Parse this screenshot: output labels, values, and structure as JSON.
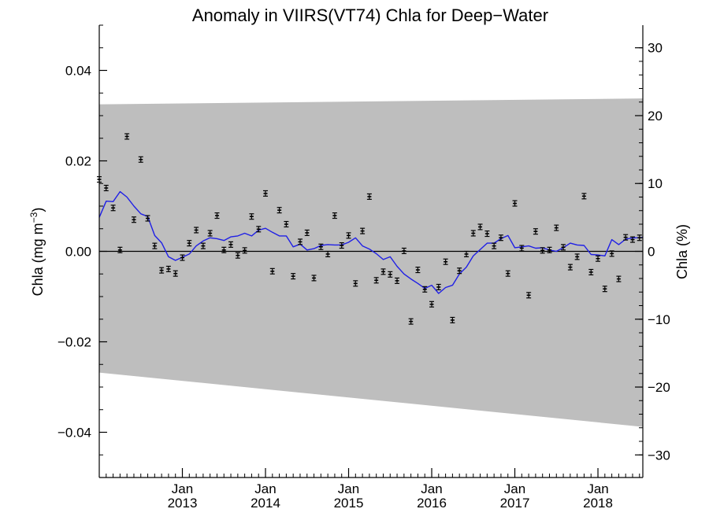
{
  "chart_data": {
    "type": "scatter",
    "title": "Anomaly in VIIRS(VT74) Chla for Deep−Water",
    "ylabel_left_main": "Chla (mg m",
    "ylabel_left_exp": "−3",
    "ylabel_left_close": ")",
    "ylabel_right": "Chla (%)",
    "xlim": [
      2012.0,
      2018.54
    ],
    "ylim_left": [
      -0.05,
      0.05
    ],
    "ylim_right": [
      -33.33,
      33.33
    ],
    "grid": false,
    "yticks_left": [
      {
        "value": 0.04,
        "label": "0.04"
      },
      {
        "value": 0.02,
        "label": "0.02"
      },
      {
        "value": 0.0,
        "label": "0.00"
      },
      {
        "value": -0.02,
        "label": "−0.02"
      },
      {
        "value": -0.04,
        "label": "−0.04"
      }
    ],
    "yticks_right": [
      {
        "value": 30,
        "label": "30"
      },
      {
        "value": 20,
        "label": "20"
      },
      {
        "value": 10,
        "label": "10"
      },
      {
        "value": 0,
        "label": "0"
      },
      {
        "value": -10,
        "label": "−10"
      },
      {
        "value": -20,
        "label": "−20"
      },
      {
        "value": -30,
        "label": "−30"
      }
    ],
    "xticks": [
      {
        "value": 2013.0,
        "month": "Jan",
        "year": "2013"
      },
      {
        "value": 2014.0,
        "month": "Jan",
        "year": "2014"
      },
      {
        "value": 2015.0,
        "month": "Jan",
        "year": "2015"
      },
      {
        "value": 2016.0,
        "month": "Jan",
        "year": "2016"
      },
      {
        "value": 2017.0,
        "month": "Jan",
        "year": "2017"
      },
      {
        "value": 2018.0,
        "month": "Jan",
        "year": "2018"
      }
    ],
    "band": {
      "upper_start": 0.0325,
      "upper_end": 0.0338,
      "lower_start": -0.0268,
      "lower_end": -0.0388
    },
    "monthly_anomaly_points": {
      "t": [
        2012.0,
        2012.083,
        2012.167,
        2012.25,
        2012.333,
        2012.417,
        2012.5,
        2012.583,
        2012.667,
        2012.75,
        2012.833,
        2012.917,
        2013.0,
        2013.083,
        2013.167,
        2013.25,
        2013.333,
        2013.417,
        2013.5,
        2013.583,
        2013.667,
        2013.75,
        2013.833,
        2013.917,
        2014.0,
        2014.083,
        2014.167,
        2014.25,
        2014.333,
        2014.417,
        2014.5,
        2014.583,
        2014.667,
        2014.75,
        2014.833,
        2014.917,
        2015.0,
        2015.083,
        2015.167,
        2015.25,
        2015.333,
        2015.417,
        2015.5,
        2015.583,
        2015.667,
        2015.75,
        2015.833,
        2015.917,
        2016.0,
        2016.083,
        2016.167,
        2016.25,
        2016.333,
        2016.417,
        2016.5,
        2016.583,
        2016.667,
        2016.75,
        2016.833,
        2016.917,
        2017.0,
        2017.083,
        2017.167,
        2017.25,
        2017.333,
        2017.417,
        2017.5,
        2017.583,
        2017.667,
        2017.75,
        2017.833,
        2017.917,
        2018.0,
        2018.083,
        2018.167,
        2018.25,
        2018.333,
        2018.417,
        2018.5
      ],
      "value": [
        0.0159,
        0.014,
        0.0096,
        0.0003,
        0.0254,
        0.007,
        0.0203,
        0.0073,
        0.0012,
        -0.0042,
        -0.0039,
        -0.0049,
        -0.0014,
        0.0018,
        0.0047,
        0.0012,
        0.004,
        0.0079,
        0.0003,
        0.0015,
        -0.0009,
        0.0002,
        0.0077,
        0.0049,
        0.0128,
        -0.0044,
        0.0091,
        0.006,
        -0.0055,
        0.0021,
        0.0041,
        -0.0059,
        0.001,
        -0.0006,
        0.0079,
        0.0013,
        0.0035,
        -0.0071,
        0.0045,
        0.0121,
        -0.0064,
        -0.0045,
        -0.0051,
        -0.0065,
        0.0001,
        -0.0155,
        -0.0041,
        -0.0084,
        -0.0117,
        -0.0079,
        -0.0023,
        -0.0152,
        -0.0043,
        -0.0006,
        0.004,
        0.0054,
        0.0039,
        0.0012,
        0.003,
        -0.0049,
        0.0106,
        0.0007,
        -0.0097,
        0.0044,
        0.0002,
        0.0003,
        0.0052,
        0.0009,
        -0.0035,
        -0.0012,
        0.0122,
        -0.0046,
        -0.0016,
        -0.0083,
        -0.0005,
        -0.0061,
        0.0031,
        0.0026,
        0.003
      ],
      "error": [
        0.0006,
        0.0006,
        0.0006,
        0.0006,
        0.0006,
        0.0006,
        0.0006,
        0.0006,
        0.0006,
        0.0006,
        0.0006,
        0.0006,
        0.0006,
        0.0006,
        0.0006,
        0.0006,
        0.0006,
        0.0006,
        0.0006,
        0.0006,
        0.0006,
        0.0006,
        0.0006,
        0.0006,
        0.0006,
        0.0006,
        0.0006,
        0.0006,
        0.0006,
        0.0006,
        0.0006,
        0.0006,
        0.0006,
        0.0006,
        0.0006,
        0.0006,
        0.0006,
        0.0006,
        0.0006,
        0.0006,
        0.0006,
        0.0006,
        0.0006,
        0.0006,
        0.0006,
        0.0006,
        0.0006,
        0.0006,
        0.0006,
        0.0006,
        0.0006,
        0.0006,
        0.0006,
        0.0006,
        0.0006,
        0.0006,
        0.0006,
        0.0006,
        0.0006,
        0.0006,
        0.0006,
        0.0006,
        0.0006,
        0.0006,
        0.0006,
        0.0006,
        0.0006,
        0.0006,
        0.0006,
        0.0006,
        0.0006,
        0.0006,
        0.0006,
        0.0006,
        0.0006,
        0.0006,
        0.0006,
        0.0006,
        0.0006
      ]
    },
    "smoothed_line": {
      "t": [
        2012.0,
        2012.083,
        2012.167,
        2012.25,
        2012.333,
        2012.417,
        2012.5,
        2012.583,
        2012.667,
        2012.75,
        2012.833,
        2012.917,
        2013.0,
        2013.083,
        2013.167,
        2013.25,
        2013.333,
        2013.417,
        2013.5,
        2013.583,
        2013.667,
        2013.75,
        2013.833,
        2013.917,
        2014.0,
        2014.083,
        2014.167,
        2014.25,
        2014.333,
        2014.417,
        2014.5,
        2014.583,
        2014.667,
        2014.75,
        2014.833,
        2014.917,
        2015.0,
        2015.083,
        2015.167,
        2015.25,
        2015.333,
        2015.417,
        2015.5,
        2015.583,
        2015.667,
        2015.75,
        2015.833,
        2015.917,
        2016.0,
        2016.083,
        2016.167,
        2016.25,
        2016.333,
        2016.417,
        2016.5,
        2016.583,
        2016.667,
        2016.75,
        2016.833,
        2016.917,
        2017.0,
        2017.083,
        2017.167,
        2017.25,
        2017.333,
        2017.417,
        2017.5,
        2017.583,
        2017.667,
        2017.75,
        2017.833,
        2017.917,
        2018.0,
        2018.083,
        2018.167,
        2018.25,
        2018.333,
        2018.417,
        2018.5,
        2018.54
      ],
      "value": [
        0.0075,
        0.0111,
        0.011,
        0.0132,
        0.012,
        0.01,
        0.0083,
        0.0077,
        0.0035,
        0.0019,
        -0.0012,
        -0.002,
        -0.0013,
        -0.0006,
        0.0012,
        0.0023,
        0.003,
        0.0028,
        0.0024,
        0.0032,
        0.0034,
        0.004,
        0.0034,
        0.0047,
        0.0051,
        0.0042,
        0.0034,
        0.0034,
        0.001,
        0.0016,
        0.0003,
        0.0006,
        0.0013,
        0.0015,
        0.0014,
        0.0014,
        0.002,
        0.003,
        0.0012,
        0.0005,
        -0.0005,
        -0.0018,
        -0.0012,
        -0.0033,
        -0.005,
        -0.0061,
        -0.0071,
        -0.0082,
        -0.0075,
        -0.0093,
        -0.008,
        -0.0075,
        -0.005,
        -0.0035,
        -0.001,
        0.0004,
        0.0018,
        0.0018,
        0.0028,
        0.0035,
        0.0008,
        0.001,
        0.0012,
        0.0007,
        0.0008,
        0.0003,
        0.0,
        0.0008,
        0.0018,
        0.0014,
        0.0013,
        -0.0007,
        -0.0008,
        -0.001,
        0.0026,
        0.0015,
        0.0027,
        0.003,
        0.003,
        0.0031
      ]
    },
    "colors": {
      "band": "#bebebe",
      "line": "#1f1fe6",
      "points": "#000000",
      "zero_line": "#000000",
      "background": "#ffffff"
    }
  }
}
